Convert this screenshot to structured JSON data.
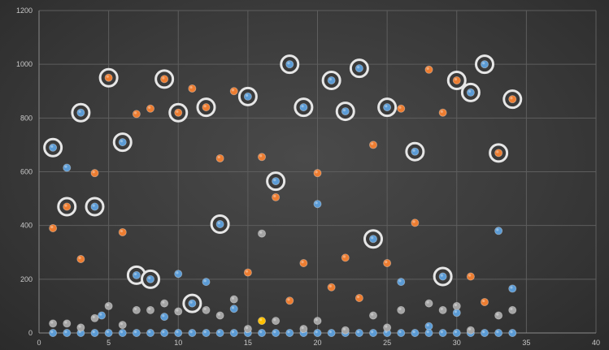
{
  "chart_data": {
    "type": "scatter",
    "title": "",
    "xlabel": "",
    "ylabel": "",
    "xlim": [
      0,
      40
    ],
    "ylim": [
      0,
      1200
    ],
    "x_ticks": [
      0,
      5,
      10,
      15,
      20,
      25,
      30,
      35,
      40
    ],
    "y_ticks": [
      0,
      200,
      400,
      600,
      800,
      1000,
      1200
    ],
    "grid": true,
    "legend": "none",
    "colors": {
      "blue": "#5b9bd5",
      "orange": "#ed7d31",
      "gray": "#a5a5a5",
      "yellow": "#ffc000",
      "highlight_ring": "#e6e6e6"
    },
    "series": [
      {
        "color_key": "blue",
        "highlighted": true,
        "points": [
          [
            1,
            690
          ],
          [
            3,
            820
          ],
          [
            4,
            470
          ],
          [
            6,
            710
          ],
          [
            7,
            215
          ],
          [
            8,
            200
          ],
          [
            11,
            110
          ],
          [
            13,
            405
          ],
          [
            15,
            880
          ],
          [
            17,
            565
          ],
          [
            18,
            1000
          ],
          [
            19,
            840
          ],
          [
            21,
            940
          ],
          [
            22,
            825
          ],
          [
            23,
            985
          ],
          [
            24,
            350
          ],
          [
            25,
            840
          ],
          [
            27,
            675
          ],
          [
            29,
            210
          ],
          [
            31,
            895
          ],
          [
            32,
            1000
          ]
        ]
      },
      {
        "color_key": "orange",
        "highlighted": true,
        "points": [
          [
            2,
            470
          ],
          [
            5,
            950
          ],
          [
            9,
            945
          ],
          [
            10,
            820
          ],
          [
            12,
            840
          ],
          [
            30,
            940
          ],
          [
            33,
            670
          ],
          [
            34,
            870
          ]
        ]
      },
      {
        "color_key": "blue",
        "highlighted": false,
        "points": [
          [
            2,
            615
          ],
          [
            4.5,
            65
          ],
          [
            9,
            60
          ],
          [
            10,
            220
          ],
          [
            12,
            190
          ],
          [
            14,
            90
          ],
          [
            20,
            480
          ],
          [
            26,
            190
          ],
          [
            28,
            25
          ],
          [
            30,
            75
          ],
          [
            33,
            380
          ],
          [
            34,
            165
          ],
          [
            1,
            0
          ],
          [
            2,
            0
          ],
          [
            3,
            0
          ],
          [
            4,
            0
          ],
          [
            5,
            0
          ],
          [
            6,
            0
          ],
          [
            7,
            0
          ],
          [
            8,
            0
          ],
          [
            9,
            0
          ],
          [
            10,
            0
          ],
          [
            11,
            0
          ],
          [
            12,
            0
          ],
          [
            13,
            0
          ],
          [
            14,
            0
          ],
          [
            15,
            0
          ],
          [
            16,
            0
          ],
          [
            17,
            0
          ],
          [
            18,
            0
          ],
          [
            19,
            0
          ],
          [
            20,
            0
          ],
          [
            21,
            0
          ],
          [
            22,
            0
          ],
          [
            23,
            0
          ],
          [
            24,
            0
          ],
          [
            25,
            0
          ],
          [
            26,
            0
          ],
          [
            27,
            0
          ],
          [
            28,
            0
          ],
          [
            29,
            0
          ],
          [
            30,
            0
          ],
          [
            31,
            0
          ],
          [
            32,
            0
          ],
          [
            33,
            0
          ],
          [
            34,
            0
          ]
        ]
      },
      {
        "color_key": "orange",
        "highlighted": false,
        "points": [
          [
            1,
            390
          ],
          [
            3,
            275
          ],
          [
            4,
            595
          ],
          [
            6,
            375
          ],
          [
            7,
            815
          ],
          [
            8,
            835
          ],
          [
            11,
            910
          ],
          [
            13,
            650
          ],
          [
            14,
            900
          ],
          [
            15,
            225
          ],
          [
            16,
            655
          ],
          [
            17,
            505
          ],
          [
            18,
            120
          ],
          [
            19,
            260
          ],
          [
            20,
            595
          ],
          [
            21,
            170
          ],
          [
            22,
            280
          ],
          [
            23,
            130
          ],
          [
            24,
            700
          ],
          [
            25,
            260
          ],
          [
            26,
            835
          ],
          [
            27,
            410
          ],
          [
            28,
            980
          ],
          [
            29,
            820
          ],
          [
            31,
            210
          ],
          [
            32,
            115
          ]
        ]
      },
      {
        "color_key": "gray",
        "highlighted": false,
        "points": [
          [
            1,
            35
          ],
          [
            2,
            35
          ],
          [
            3,
            20
          ],
          [
            4,
            55
          ],
          [
            5,
            100
          ],
          [
            6,
            30
          ],
          [
            7,
            85
          ],
          [
            8,
            85
          ],
          [
            9,
            110
          ],
          [
            10,
            80
          ],
          [
            12,
            85
          ],
          [
            13,
            65
          ],
          [
            14,
            125
          ],
          [
            15,
            15
          ],
          [
            16,
            370
          ],
          [
            17,
            45
          ],
          [
            19,
            15
          ],
          [
            20,
            45
          ],
          [
            22,
            10
          ],
          [
            24,
            65
          ],
          [
            25,
            20
          ],
          [
            26,
            85
          ],
          [
            28,
            110
          ],
          [
            29,
            85
          ],
          [
            30,
            100
          ],
          [
            31,
            10
          ],
          [
            33,
            65
          ],
          [
            34,
            85
          ]
        ]
      },
      {
        "color_key": "yellow",
        "highlighted": false,
        "points": [
          [
            16,
            45
          ]
        ]
      }
    ]
  }
}
